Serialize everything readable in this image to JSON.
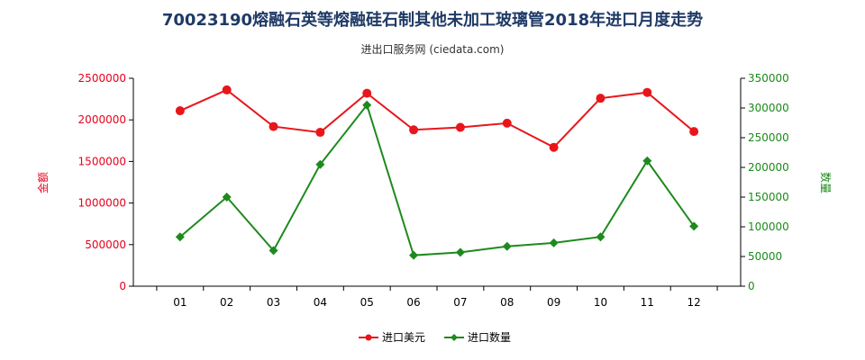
{
  "chart_data": {
    "type": "line",
    "title": "70023190熔融石英等熔融硅石制其他未加工玻璃管2018年进口月度走势",
    "subtitle": "进出口服务网 (ciedata.com)",
    "categories": [
      "01",
      "02",
      "03",
      "04",
      "05",
      "06",
      "07",
      "08",
      "09",
      "10",
      "11",
      "12"
    ],
    "y_left": {
      "label": "金额",
      "ylim": [
        0,
        2500000
      ],
      "ticks": [
        0,
        500000,
        1000000,
        1500000,
        2000000,
        2500000
      ],
      "color": "#e8001c"
    },
    "y_right": {
      "label": "数量",
      "ylim": [
        0,
        350000
      ],
      "ticks": [
        0,
        50000,
        100000,
        150000,
        200000,
        250000,
        300000,
        350000
      ],
      "color": "#1b8a1b"
    },
    "series": [
      {
        "name": "进口美元",
        "axis": "left",
        "color": "#e8161b",
        "marker": "circle",
        "values": [
          2110000,
          2360000,
          1920000,
          1850000,
          2320000,
          1880000,
          1910000,
          1960000,
          1670000,
          2260000,
          2330000,
          1860000
        ]
      },
      {
        "name": "进口数量",
        "axis": "right",
        "color": "#1e8a1e",
        "marker": "diamond",
        "values": [
          83000,
          150000,
          60000,
          205000,
          305000,
          52000,
          57000,
          67000,
          73000,
          83000,
          211000,
          101000
        ]
      }
    ],
    "legend": "bottom-center",
    "grid": false
  }
}
